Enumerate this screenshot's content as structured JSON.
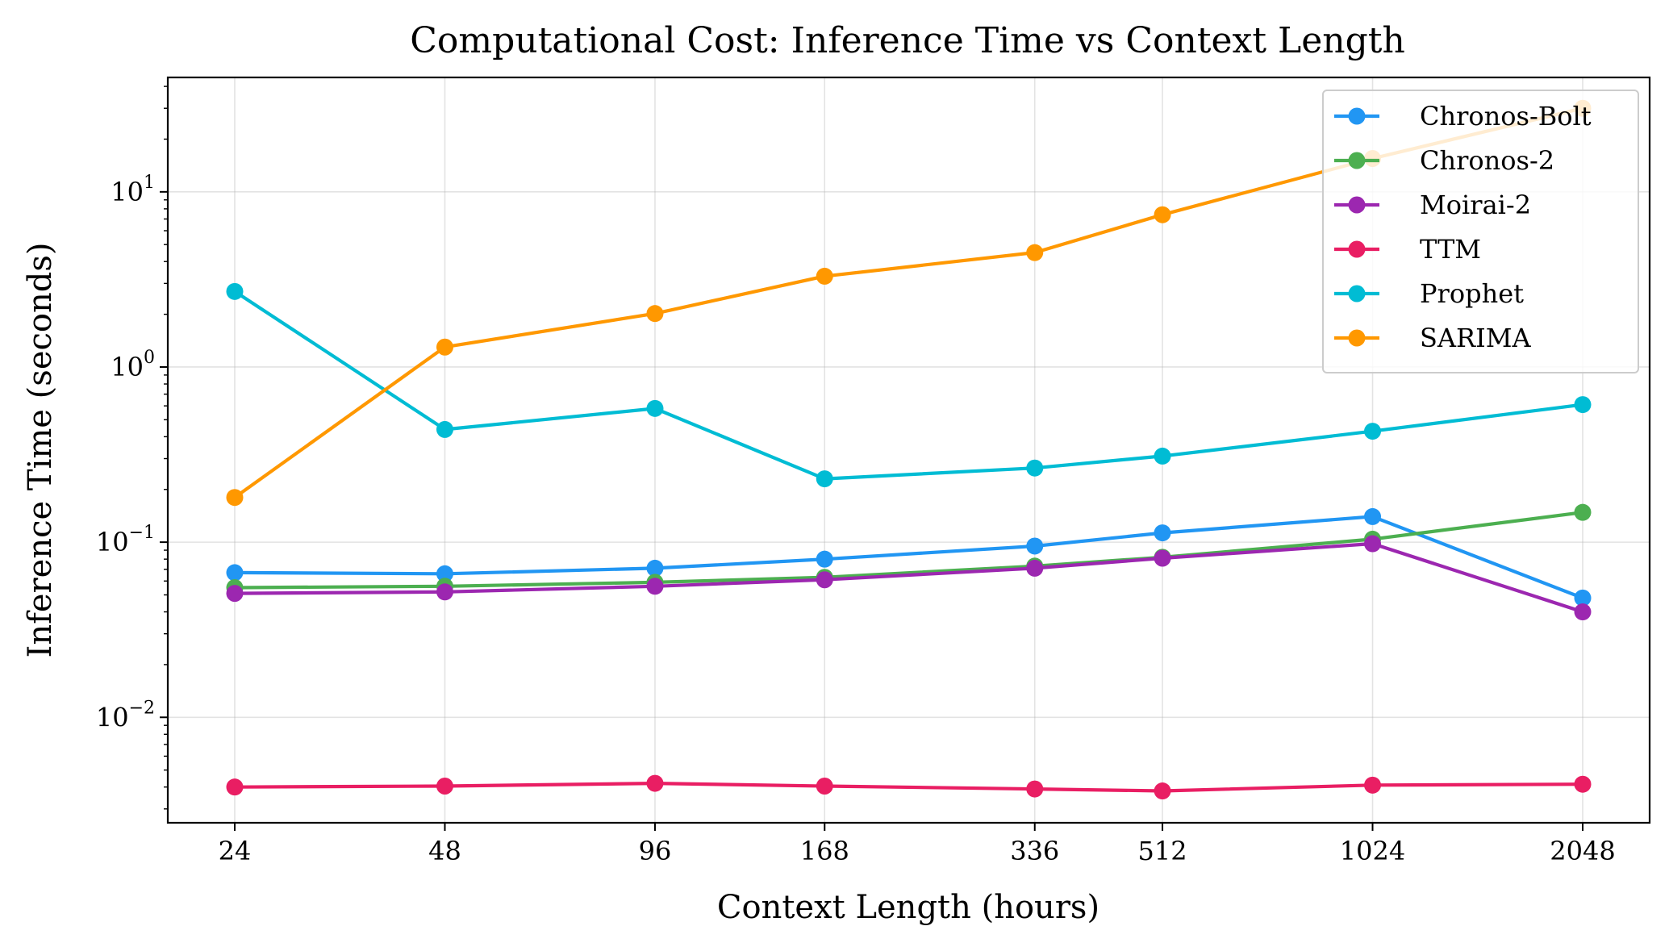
{
  "chart_data": {
    "type": "line",
    "title": "Computational Cost: Inference Time vs Context Length",
    "xlabel": "Context Length (hours)",
    "ylabel": "Inference Time (seconds)",
    "yscale": "log",
    "ylim": [
      0.0025,
      45
    ],
    "grid": true,
    "legend_loc": "upper right",
    "categories": [
      "24",
      "48",
      "96",
      "168",
      "336",
      "512",
      "1024",
      "2048"
    ],
    "yticks": [
      {
        "base": "10",
        "exp": "−2",
        "value": 0.01
      },
      {
        "base": "10",
        "exp": "−1",
        "value": 0.1
      },
      {
        "base": "10",
        "exp": "0",
        "value": 1
      },
      {
        "base": "10",
        "exp": "1",
        "value": 10
      }
    ],
    "series": [
      {
        "name": "Chronos-Bolt",
        "color": "#2196f3",
        "values": [
          0.067,
          0.066,
          0.071,
          0.08,
          0.095,
          0.113,
          0.14,
          0.048
        ]
      },
      {
        "name": "Chronos-2",
        "color": "#4caf50",
        "values": [
          0.055,
          0.056,
          0.059,
          0.063,
          0.073,
          0.082,
          0.104,
          0.148
        ]
      },
      {
        "name": "Moirai-2",
        "color": "#9c27b0",
        "values": [
          0.051,
          0.052,
          0.056,
          0.061,
          0.071,
          0.081,
          0.098,
          0.04
        ]
      },
      {
        "name": "TTM",
        "color": "#e91e63",
        "values": [
          0.004,
          0.00405,
          0.0042,
          0.00405,
          0.0039,
          0.0038,
          0.0041,
          0.00415
        ]
      },
      {
        "name": "Prophet",
        "color": "#00bcd4",
        "values": [
          2.7,
          0.44,
          0.58,
          0.23,
          0.265,
          0.31,
          0.43,
          0.61
        ]
      },
      {
        "name": "SARIMA",
        "color": "#ff9800",
        "values": [
          0.18,
          1.3,
          2.02,
          3.3,
          4.5,
          7.4,
          15.5,
          30.0
        ]
      }
    ]
  }
}
